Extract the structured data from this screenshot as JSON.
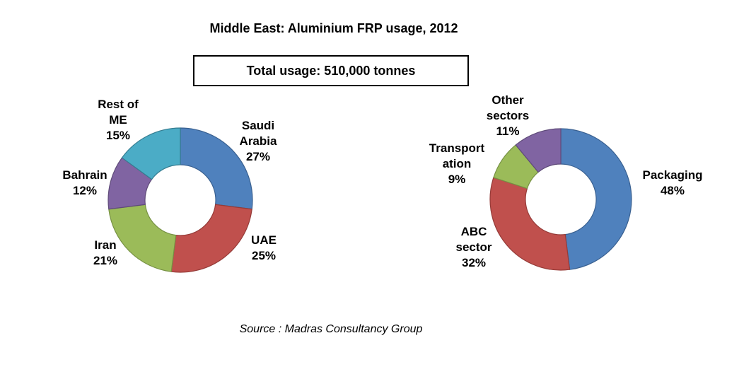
{
  "title": "Middle East: Aluminium FRP usage, 2012",
  "total_box": {
    "text": "Total usage: 510,000 tonnes"
  },
  "source": "Source : Madras Consultancy Group",
  "chart_data": [
    {
      "type": "pie",
      "subtype": "donut",
      "name": "usage-by-country",
      "unit": "%",
      "start_angle_deg": 0,
      "direction": "clockwise",
      "slices": [
        {
          "label": "Saudi Arabia",
          "label_lines": [
            "Saudi",
            "Arabia"
          ],
          "value": 27,
          "pct_text": "27%",
          "color": "#4F81BD",
          "border_color": "#3A6191"
        },
        {
          "label": "UAE",
          "label_lines": [
            "UAE"
          ],
          "value": 25,
          "pct_text": "25%",
          "color": "#C0504D",
          "border_color": "#953B38"
        },
        {
          "label": "Iran",
          "label_lines": [
            "Iran"
          ],
          "value": 21,
          "pct_text": "21%",
          "color": "#9BBB59",
          "border_color": "#769143"
        },
        {
          "label": "Bahrain",
          "label_lines": [
            "Bahrain"
          ],
          "value": 12,
          "pct_text": "12%",
          "color": "#8064A2",
          "border_color": "#5F4B79"
        },
        {
          "label": "Rest of ME",
          "label_lines": [
            "Rest of",
            "ME"
          ],
          "value": 15,
          "pct_text": "15%",
          "color": "#4BACC6",
          "border_color": "#357D91"
        }
      ]
    },
    {
      "type": "pie",
      "subtype": "donut",
      "name": "usage-by-sector",
      "unit": "%",
      "start_angle_deg": 0,
      "direction": "clockwise",
      "slices": [
        {
          "label": "Packaging",
          "label_lines": [
            "Packaging"
          ],
          "value": 48,
          "pct_text": "48%",
          "color": "#4F81BD",
          "border_color": "#3A6191"
        },
        {
          "label": "ABC sector",
          "label_lines": [
            "ABC",
            "sector"
          ],
          "value": 32,
          "pct_text": "32%",
          "color": "#C0504D",
          "border_color": "#953B38"
        },
        {
          "label": "Transportation",
          "label_lines": [
            "Transport",
            "ation"
          ],
          "value": 9,
          "pct_text": "9%",
          "color": "#9BBB59",
          "border_color": "#769143"
        },
        {
          "label": "Other sectors",
          "label_lines": [
            "Other",
            "sectors"
          ],
          "value": 11,
          "pct_text": "11%",
          "color": "#8064A2",
          "border_color": "#5F4B79"
        }
      ]
    }
  ]
}
